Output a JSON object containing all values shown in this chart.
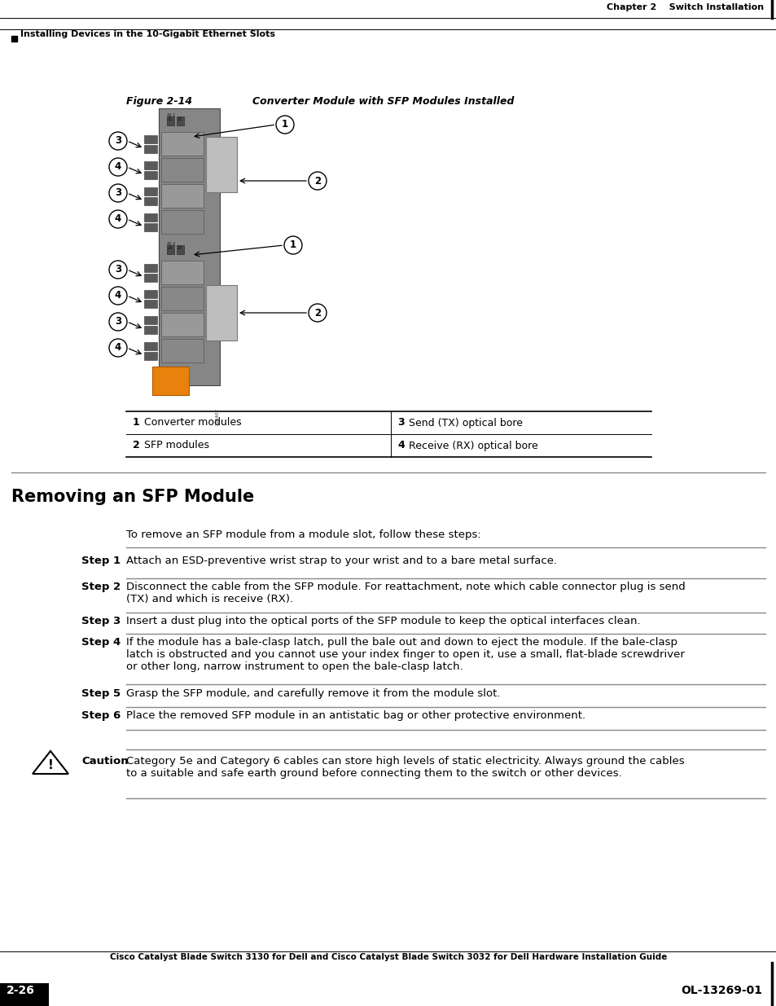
{
  "page_bg": "#ffffff",
  "header_right": "Chapter 2    Switch Installation",
  "header_left_text": "Installing Devices in the 10-Gigabit Ethernet Slots",
  "figure_label": "Figure 2-14",
  "figure_title": "Converter Module with SFP Modules Installed",
  "table_items": [
    {
      "num": "1",
      "desc": "Converter modules",
      "num2": "3",
      "desc2": "Send (TX) optical bore"
    },
    {
      "num": "2",
      "desc": "SFP modules",
      "num2": "4",
      "desc2": "Receive (RX) optical bore"
    }
  ],
  "section_title": "Removing an SFP Module",
  "intro_text": "To remove an SFP module from a module slot, follow these steps:",
  "steps": [
    {
      "label": "Step 1",
      "text": "Attach an ESD-preventive wrist strap to your wrist and to a bare metal surface."
    },
    {
      "label": "Step 2",
      "text": "Disconnect the cable from the SFP module. For reattachment, note which cable connector plug is send\n(TX) and which is receive (RX)."
    },
    {
      "label": "Step 3",
      "text": "Insert a dust plug into the optical ports of the SFP module to keep the optical interfaces clean."
    },
    {
      "label": "Step 4",
      "text": "If the module has a bale-clasp latch, pull the bale out and down to eject the module. If the bale-clasp\nlatch is obstructed and you cannot use your index finger to open it, use a small, flat-blade screwdriver\nor other long, narrow instrument to open the bale-clasp latch."
    },
    {
      "label": "Step 5",
      "text": "Grasp the SFP module, and carefully remove it from the module slot."
    },
    {
      "label": "Step 6",
      "text": "Place the removed SFP module in an antistatic bag or other protective environment."
    }
  ],
  "caution_label": "Caution",
  "caution_text": "Category 5e and Category 6 cables can store high levels of static electricity. Always ground the cables\nto a suitable and safe earth ground before connecting them to the switch or other devices.",
  "footer_center": "Cisco Catalyst Blade Switch 3130 for Dell and Cisco Catalyst Blade Switch 3032 for Dell Hardware Installation Guide",
  "footer_left": "2-26",
  "footer_right": "OL-13269-01"
}
